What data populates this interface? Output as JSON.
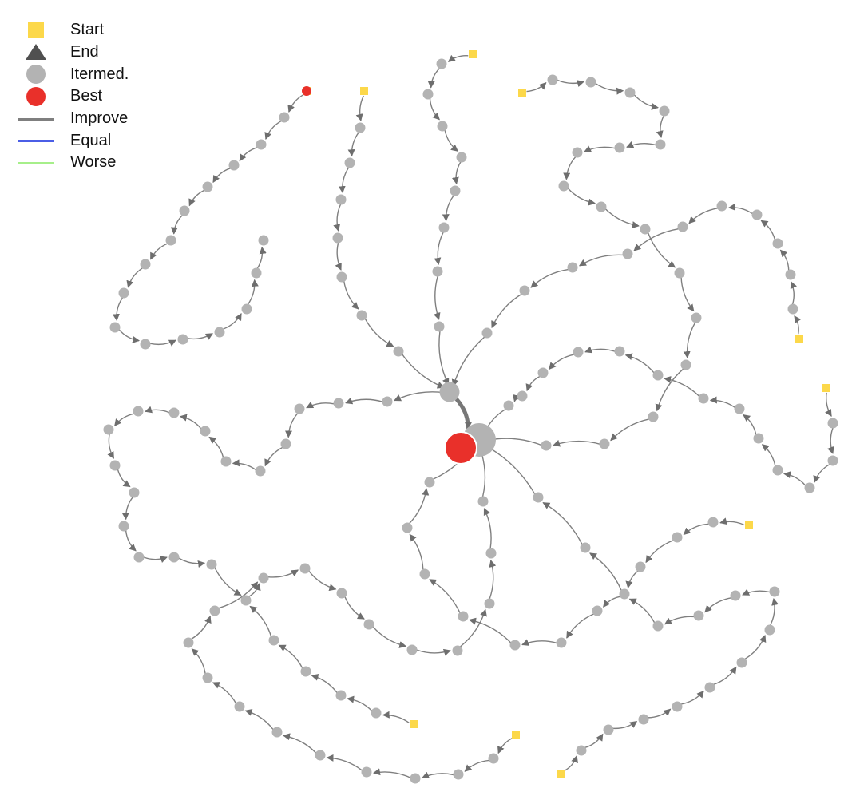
{
  "legend": {
    "items": [
      {
        "label": "Start",
        "symbol": "square",
        "color": "#fcd84a",
        "icon": "start-square-icon"
      },
      {
        "label": "End",
        "symbol": "triangle",
        "color": "#505050",
        "icon": "end-triangle-icon"
      },
      {
        "label": "Itermed.",
        "symbol": "circle",
        "color": "#b3b3b3",
        "icon": "intermediate-circle-icon"
      },
      {
        "label": "Best",
        "symbol": "circle",
        "color": "#e9302a",
        "icon": "best-circle-icon"
      },
      {
        "label": "Improve",
        "symbol": "line",
        "color": "#7f7f7f",
        "icon": "improve-line-icon"
      },
      {
        "label": "Equal",
        "symbol": "line",
        "color": "#4b5ee6",
        "icon": "equal-line-icon"
      },
      {
        "label": "Worse",
        "symbol": "line",
        "color": "#a6ef8a",
        "icon": "worse-line-icon"
      }
    ]
  },
  "colors": {
    "start": "#fcd84a",
    "node": "#b3b3b3",
    "best": "#e9302a",
    "edge": "#7f7f7f"
  }
}
